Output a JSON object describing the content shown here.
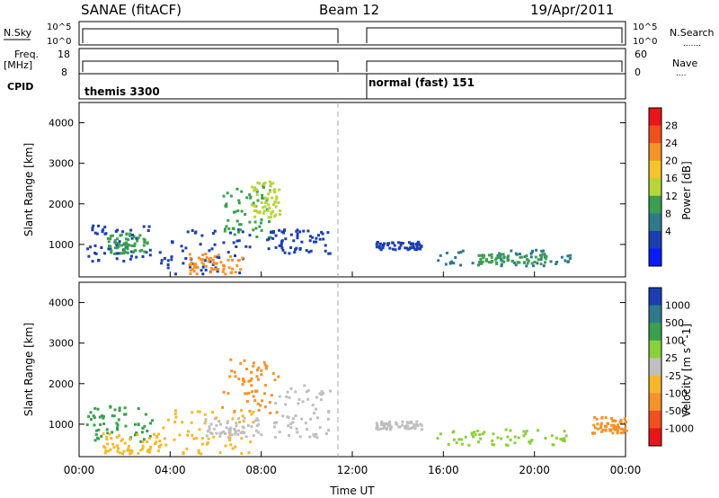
{
  "header": {
    "title": "SANAE (fitACF)",
    "beam": "Beam 12",
    "date": "19/Apr/2011"
  },
  "status_panels": {
    "nsky": {
      "label": "N.Sky",
      "ticks": [
        "10^5",
        "10^0"
      ]
    },
    "nsearch": {
      "label": "N.Search",
      "ticks": [
        "10^5",
        "10^0"
      ]
    },
    "freq": {
      "label_top": "Freq.",
      "label_bot": "[MHz]",
      "ticks": [
        "18",
        "8"
      ]
    },
    "nave": {
      "label": "Nave",
      "ticks": [
        "60",
        "0"
      ]
    },
    "cpid": {
      "label": "CPID",
      "segments": [
        "themis 3300",
        "normal (fast) 151"
      ]
    }
  },
  "chart_data": [
    {
      "type": "heatmap",
      "name": "power",
      "ylabel": "Slant Range [km]",
      "x_range_hours": [
        0,
        24
      ],
      "y_range": [
        200,
        4500
      ],
      "y_ticks": [
        1000,
        2000,
        3000,
        4000
      ],
      "colorbar": {
        "label": "Power [dB]",
        "ticks": [
          "28",
          "24",
          "20",
          "16",
          "12",
          "8",
          "4"
        ],
        "colors": [
          "#e8151b",
          "#f0501e",
          "#f5922a",
          "#f5c32a",
          "#b8d63a",
          "#3aa04f",
          "#2e7a8a",
          "#1b3fb0",
          "#0a1cf5"
        ]
      },
      "clusters": [
        {
          "t0": 0.3,
          "t1": 3.2,
          "r0": 600,
          "r1": 1500,
          "color": "#1b3fb0"
        },
        {
          "t0": 1.2,
          "t1": 3.0,
          "r0": 800,
          "r1": 1300,
          "color": "#3aa04f"
        },
        {
          "t0": 3.5,
          "t1": 7.6,
          "r0": 300,
          "r1": 1400,
          "color": "#1b3fb0"
        },
        {
          "t0": 4.8,
          "t1": 7.2,
          "r0": 300,
          "r1": 800,
          "color": "#f5922a"
        },
        {
          "t0": 6.2,
          "t1": 8.4,
          "r0": 1200,
          "r1": 2500,
          "color": "#3aa04f"
        },
        {
          "t0": 7.5,
          "t1": 8.8,
          "r0": 1700,
          "r1": 2600,
          "color": "#b8d63a"
        },
        {
          "t0": 8.2,
          "t1": 11.0,
          "r0": 800,
          "r1": 1400,
          "color": "#1b3fb0"
        },
        {
          "t0": 13.0,
          "t1": 15.0,
          "r0": 900,
          "r1": 1100,
          "color": "#1b3fb0"
        },
        {
          "t0": 15.6,
          "t1": 21.6,
          "r0": 500,
          "r1": 900,
          "color": "#2e7a8a"
        },
        {
          "t0": 17.5,
          "t1": 20.5,
          "r0": 550,
          "r1": 800,
          "color": "#3aa04f"
        }
      ]
    },
    {
      "type": "heatmap",
      "name": "velocity",
      "ylabel": "Slant Range [km]",
      "xlabel": "Time UT",
      "x_range_hours": [
        0,
        24
      ],
      "x_ticks": [
        "00:00",
        "04:00",
        "08:00",
        "12:00",
        "16:00",
        "20:00",
        "00:00"
      ],
      "y_range": [
        200,
        4500
      ],
      "y_ticks": [
        1000,
        2000,
        3000,
        4000
      ],
      "colorbar": {
        "label": "Velocity [m s^-1]",
        "ticks": [
          "1000",
          "500",
          "100",
          "25",
          "-25",
          "-100",
          "-500",
          "-1000"
        ],
        "colors": [
          "#1b3fb0",
          "#2e7a8a",
          "#3aa04f",
          "#8ad03a",
          "#bfbfbf",
          "#f5b82a",
          "#f5922a",
          "#f0501e",
          "#e8151b"
        ]
      },
      "clusters": [
        {
          "t0": 0.3,
          "t1": 3.2,
          "r0": 600,
          "r1": 1500,
          "color": "#3aa04f"
        },
        {
          "t0": 1.0,
          "t1": 3.5,
          "r0": 300,
          "r1": 800,
          "color": "#f5b82a"
        },
        {
          "t0": 3.5,
          "t1": 7.6,
          "r0": 300,
          "r1": 1400,
          "color": "#f5b82a"
        },
        {
          "t0": 5.5,
          "t1": 8.0,
          "r0": 700,
          "r1": 1200,
          "color": "#bfbfbf"
        },
        {
          "t0": 6.2,
          "t1": 8.8,
          "r0": 1300,
          "r1": 2700,
          "color": "#f5922a"
        },
        {
          "t0": 8.5,
          "t1": 11.0,
          "r0": 700,
          "r1": 2000,
          "color": "#bfbfbf"
        },
        {
          "t0": 13.0,
          "t1": 15.0,
          "r0": 900,
          "r1": 1100,
          "color": "#bfbfbf"
        },
        {
          "t0": 15.6,
          "t1": 21.6,
          "r0": 500,
          "r1": 900,
          "color": "#8ad03a"
        },
        {
          "t0": 22.5,
          "t1": 24.0,
          "r0": 800,
          "r1": 1200,
          "color": "#f5922a"
        }
      ]
    }
  ]
}
